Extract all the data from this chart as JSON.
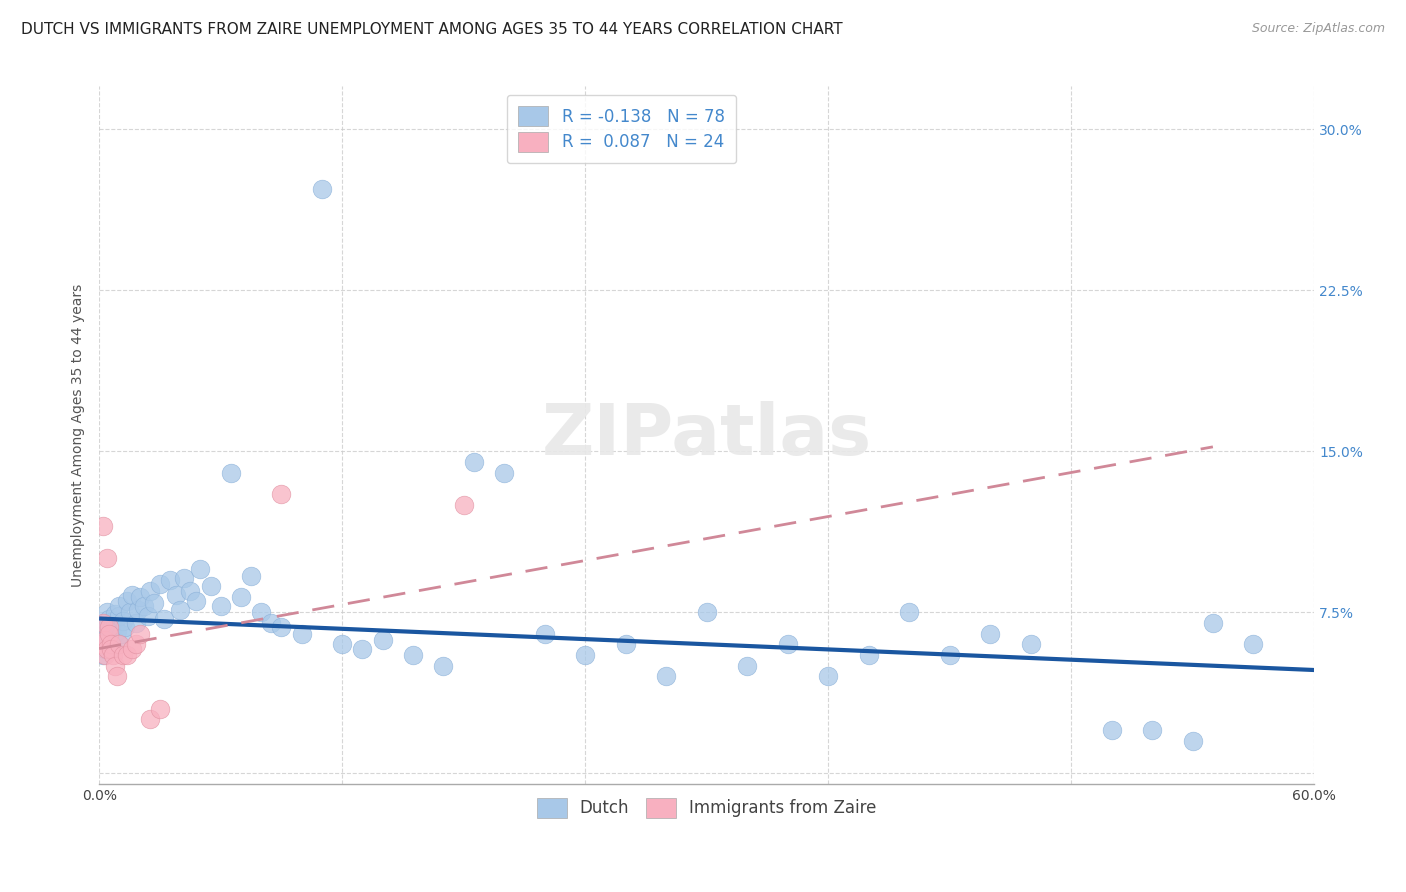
{
  "title": "DUTCH VS IMMIGRANTS FROM ZAIRE UNEMPLOYMENT AMONG AGES 35 TO 44 YEARS CORRELATION CHART",
  "source": "Source: ZipAtlas.com",
  "ylabel": "Unemployment Among Ages 35 to 44 years",
  "xlim": [
    0.0,
    0.6
  ],
  "ylim": [
    -0.005,
    0.32
  ],
  "yticks": [
    0.0,
    0.075,
    0.15,
    0.225,
    0.3
  ],
  "ytick_labels": [
    "",
    "7.5%",
    "15.0%",
    "22.5%",
    "30.0%"
  ],
  "xtick_left": "0.0%",
  "xtick_right": "60.0%",
  "grid_color": "#cccccc",
  "background_color": "#ffffff",
  "dutch_color": "#a8c8e8",
  "zaire_color": "#f8b0c0",
  "dutch_line_color": "#1a56a0",
  "zaire_line_color": "#d08898",
  "dutch_R": -0.138,
  "dutch_N": 78,
  "zaire_R": 0.087,
  "zaire_N": 24,
  "title_fontsize": 11,
  "axis_label_fontsize": 10,
  "tick_fontsize": 10,
  "legend_fontsize": 12,
  "watermark": "ZIPatlas",
  "dutch_x": [
    0.001,
    0.002,
    0.002,
    0.003,
    0.003,
    0.004,
    0.004,
    0.004,
    0.005,
    0.005,
    0.005,
    0.006,
    0.006,
    0.007,
    0.007,
    0.008,
    0.008,
    0.009,
    0.009,
    0.01,
    0.01,
    0.011,
    0.012,
    0.013,
    0.014,
    0.015,
    0.016,
    0.018,
    0.019,
    0.02,
    0.022,
    0.024,
    0.025,
    0.027,
    0.03,
    0.032,
    0.035,
    0.038,
    0.04,
    0.042,
    0.045,
    0.048,
    0.05,
    0.055,
    0.06,
    0.065,
    0.07,
    0.075,
    0.08,
    0.085,
    0.09,
    0.1,
    0.11,
    0.12,
    0.13,
    0.14,
    0.155,
    0.17,
    0.185,
    0.2,
    0.22,
    0.24,
    0.26,
    0.28,
    0.3,
    0.32,
    0.34,
    0.36,
    0.38,
    0.4,
    0.42,
    0.44,
    0.46,
    0.5,
    0.52,
    0.54,
    0.55,
    0.57
  ],
  "dutch_y": [
    0.06,
    0.055,
    0.07,
    0.058,
    0.065,
    0.062,
    0.068,
    0.075,
    0.06,
    0.072,
    0.063,
    0.058,
    0.067,
    0.071,
    0.064,
    0.069,
    0.074,
    0.061,
    0.066,
    0.073,
    0.078,
    0.065,
    0.071,
    0.068,
    0.08,
    0.075,
    0.083,
    0.07,
    0.076,
    0.082,
    0.078,
    0.073,
    0.085,
    0.079,
    0.088,
    0.072,
    0.09,
    0.083,
    0.076,
    0.091,
    0.085,
    0.08,
    0.095,
    0.087,
    0.078,
    0.14,
    0.082,
    0.092,
    0.075,
    0.07,
    0.068,
    0.065,
    0.272,
    0.06,
    0.058,
    0.062,
    0.055,
    0.05,
    0.145,
    0.14,
    0.065,
    0.055,
    0.06,
    0.045,
    0.075,
    0.05,
    0.06,
    0.045,
    0.055,
    0.075,
    0.055,
    0.065,
    0.06,
    0.02,
    0.02,
    0.015,
    0.07,
    0.06
  ],
  "zaire_x": [
    0.001,
    0.002,
    0.002,
    0.003,
    0.003,
    0.004,
    0.004,
    0.005,
    0.005,
    0.006,
    0.006,
    0.007,
    0.008,
    0.009,
    0.01,
    0.012,
    0.014,
    0.016,
    0.018,
    0.02,
    0.025,
    0.03,
    0.09,
    0.18
  ],
  "zaire_y": [
    0.06,
    0.115,
    0.07,
    0.055,
    0.062,
    0.058,
    0.1,
    0.068,
    0.065,
    0.06,
    0.058,
    0.055,
    0.05,
    0.045,
    0.06,
    0.055,
    0.055,
    0.058,
    0.06,
    0.065,
    0.025,
    0.03,
    0.13,
    0.125
  ]
}
